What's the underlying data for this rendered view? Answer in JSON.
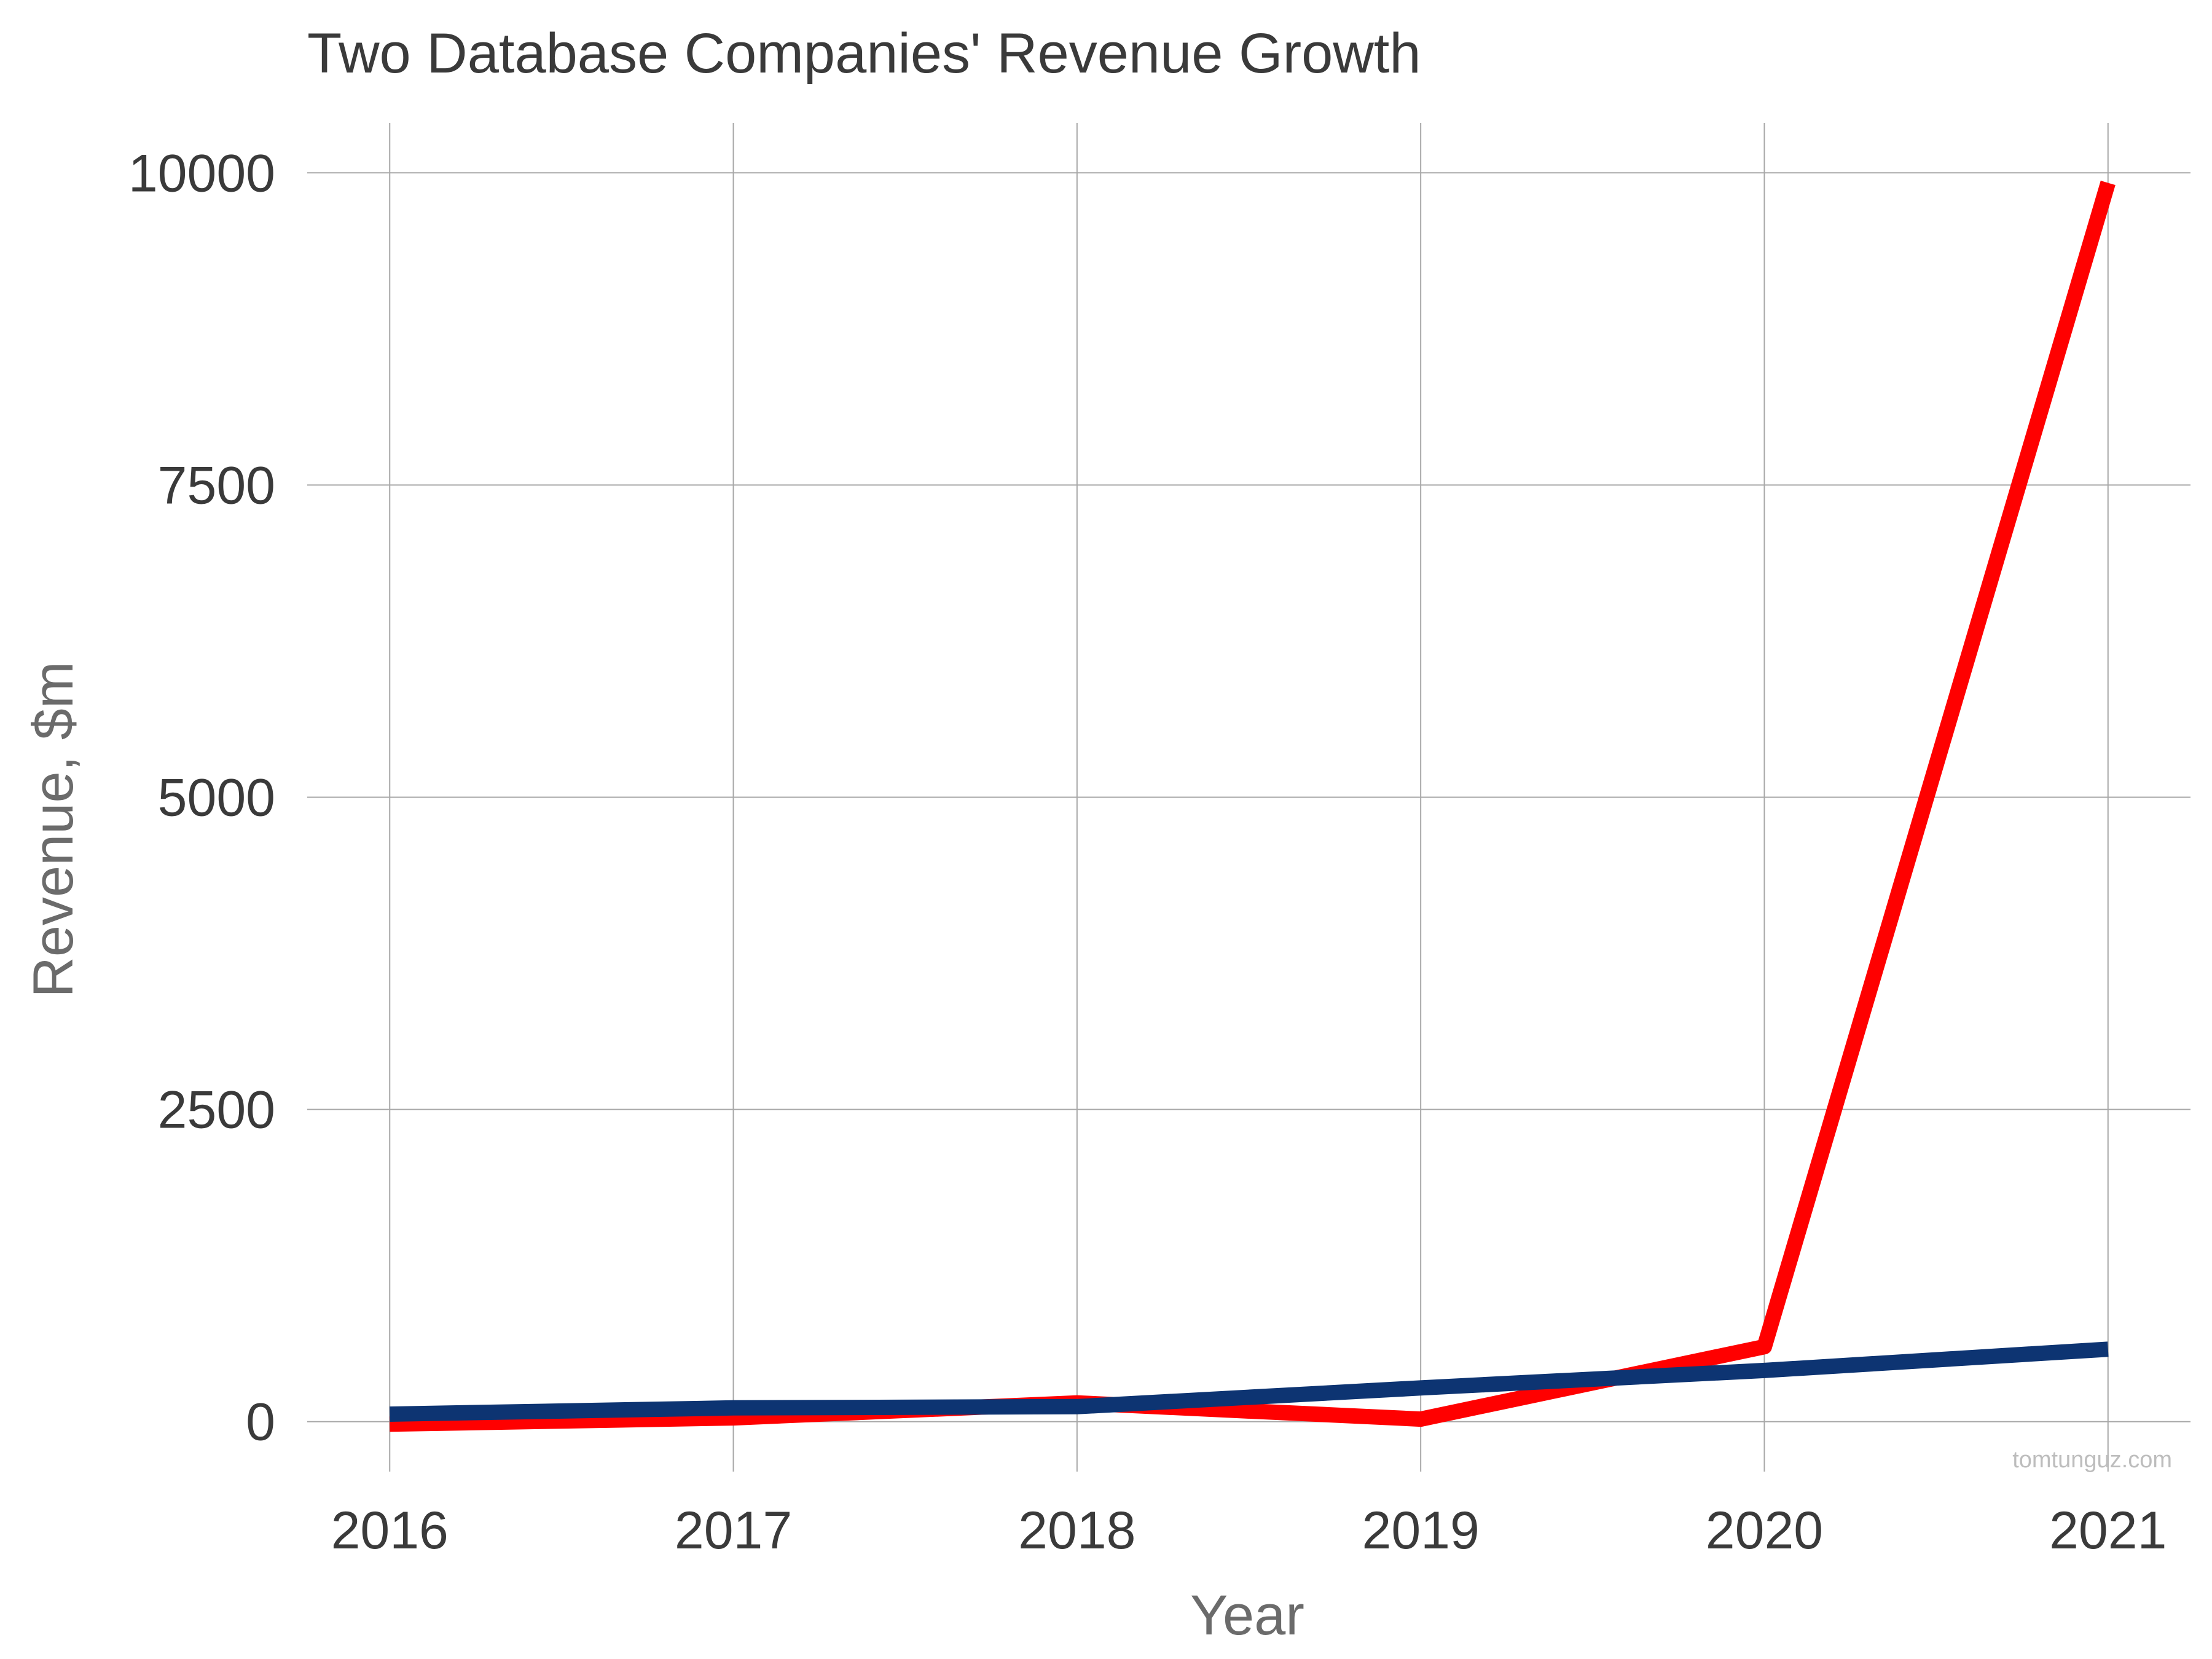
{
  "chart_data": {
    "type": "line",
    "title": "Two Database Companies' Revenue Growth",
    "xlabel": "Year",
    "ylabel": "Revenue, $m",
    "x": [
      2016,
      2017,
      2018,
      2019,
      2020,
      2021
    ],
    "x_ticks": [
      "2016",
      "2017",
      "2018",
      "2019",
      "2020",
      "2021"
    ],
    "y_ticks": [
      "0",
      "2500",
      "5000",
      "7500",
      "10000"
    ],
    "y_tick_values": [
      0,
      2500,
      5000,
      7500,
      10000
    ],
    "xlim": [
      2015.76,
      2021.24
    ],
    "ylim": [
      -400,
      10400
    ],
    "grid": true,
    "series": [
      {
        "values": [
          -20,
          30,
          150,
          20,
          600,
          9920
        ],
        "color": "#ff0000"
      },
      {
        "values": [
          60,
          110,
          120,
          270,
          410,
          580
        ],
        "color": "#0d3472"
      }
    ],
    "annotations": [
      "tomtunguz.com"
    ]
  }
}
